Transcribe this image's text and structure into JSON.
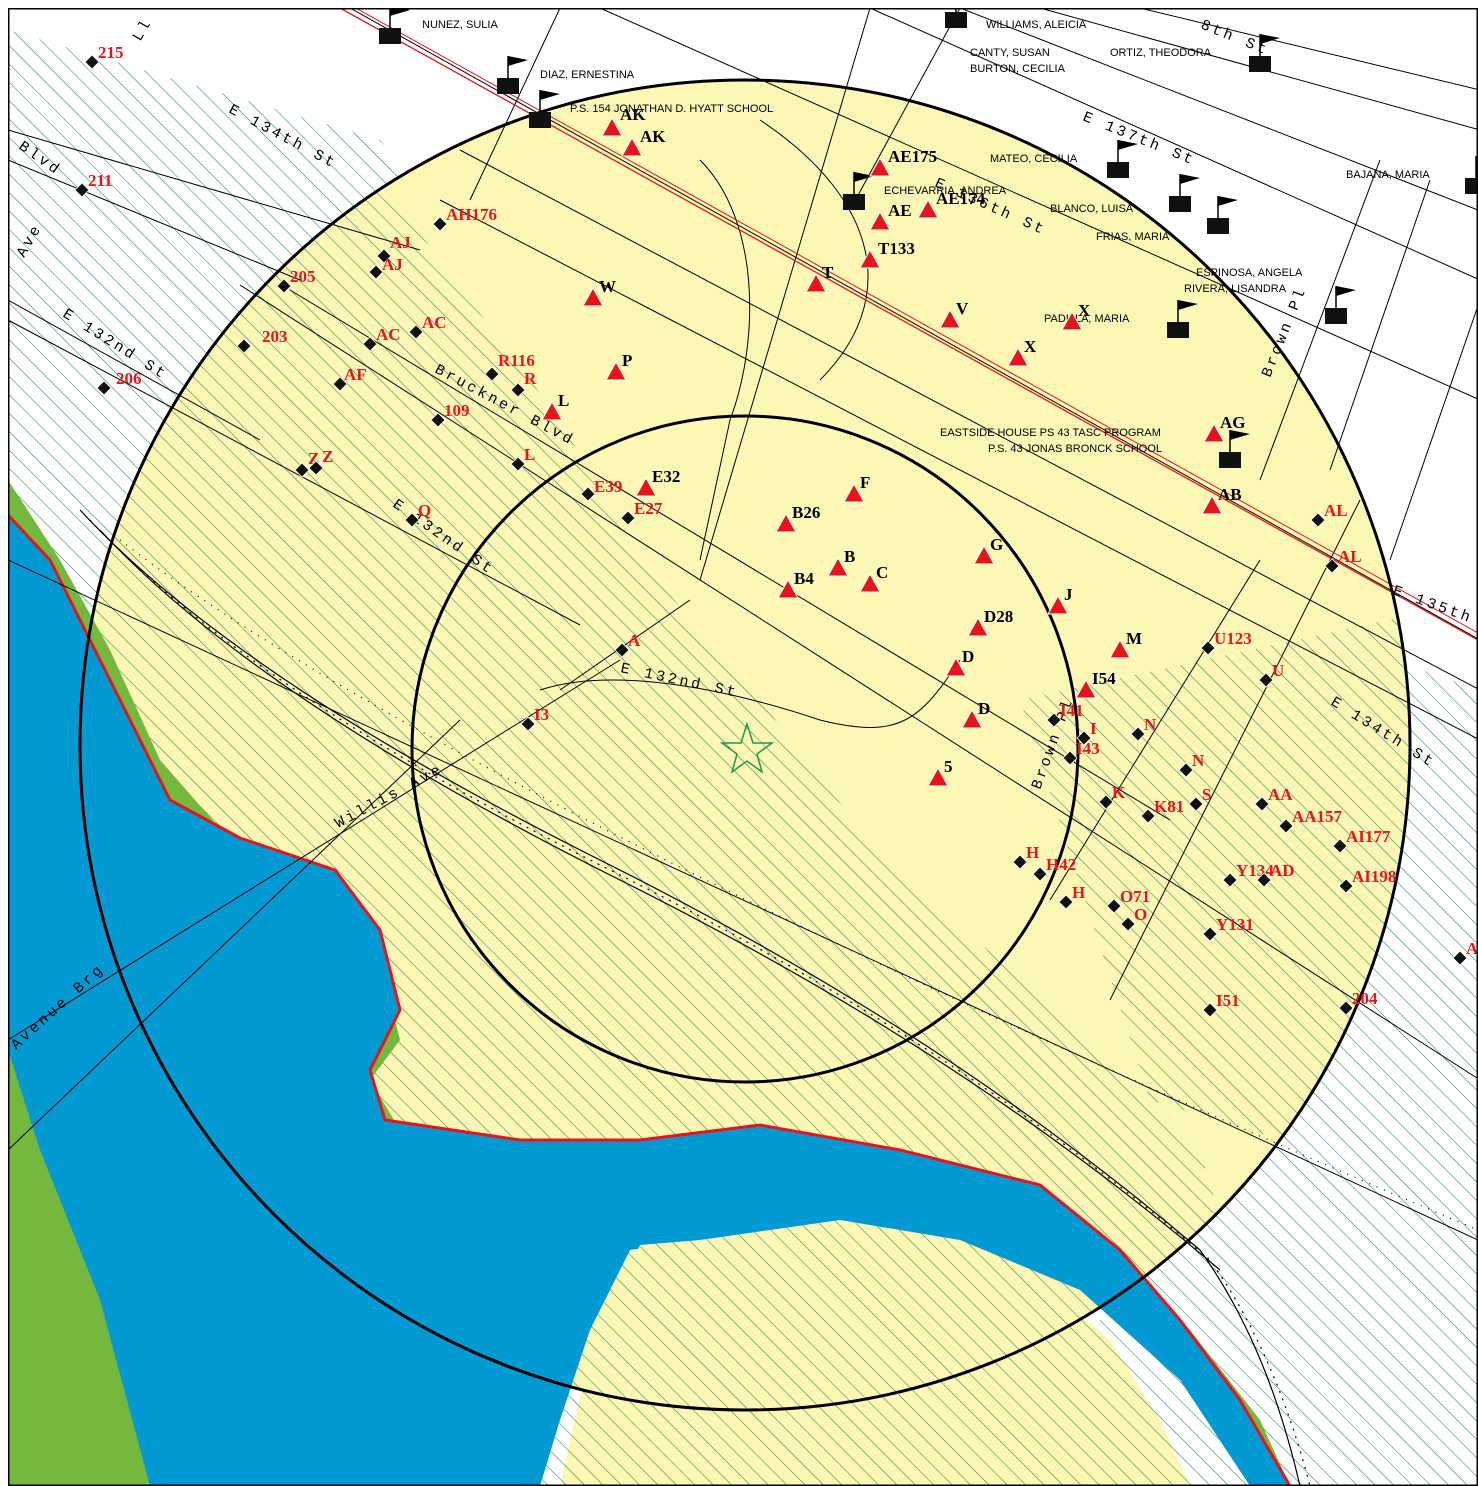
{
  "colors": {
    "background": "#ffffff",
    "zone_fill": "#fdf7b5",
    "hatch": "#1f8a52",
    "water": "#0399d3",
    "wetland": "#74b93e",
    "shoreline": "#e8141c",
    "marker_red": "#e8141c",
    "marker_black": "#111111",
    "center_star": "#1a9a4a"
  },
  "streets": [
    {
      "text": "E 134th St"
    },
    {
      "text": "Blvd"
    },
    {
      "text": "Ave"
    },
    {
      "text": "E 132nd St"
    },
    {
      "text": "Bruckner Blvd"
    },
    {
      "text": "E 132nd St"
    },
    {
      "text": "E 132nd St"
    },
    {
      "text": "Willis Ave"
    },
    {
      "text": "Avenue Brg"
    },
    {
      "text": "E 137th St"
    },
    {
      "text": "E 136th St"
    },
    {
      "text": "8th St"
    },
    {
      "text": "Brown Pl"
    },
    {
      "text": "E 135th"
    },
    {
      "text": "E 134th St"
    },
    {
      "text": "Brown Pl"
    },
    {
      "text": "Ll"
    }
  ],
  "receptors": [
    {
      "text": "NUNEZ, SULIA"
    },
    {
      "text": "WILLIAMS, ALEICIA"
    },
    {
      "text": "CANTY, SUSAN"
    },
    {
      "text": "BURTON, CECILIA"
    },
    {
      "text": "ORTIZ, THEODORA"
    },
    {
      "text": "DIAZ, ERNESTINA"
    },
    {
      "text": "P.S. 154 JONATHAN D. HYATT SCHOOL"
    },
    {
      "text": "MATEO, CECILIA"
    },
    {
      "text": "ECHEVARRIA, ANDREA"
    },
    {
      "text": "BLANCO, LUISA"
    },
    {
      "text": "FRIAS, MARIA"
    },
    {
      "text": "BAJANA, MARIA"
    },
    {
      "text": "ESPINOSA, ANGELA"
    },
    {
      "text": "RIVERA, LISANDRA"
    },
    {
      "text": "PADILLA, MARIA"
    },
    {
      "text": "EASTSIDE HOUSE PS 43 TASC PROGRAM"
    },
    {
      "text": "P.S. 43 JONAS BRONCK SCHOOL"
    }
  ],
  "triangle_sites": [
    {
      "label": "AK",
      "color": "black"
    },
    {
      "label": "AK",
      "color": "black"
    },
    {
      "label": "AE175",
      "color": "black"
    },
    {
      "label": "AE",
      "color": "black"
    },
    {
      "label": "AE174",
      "color": "black"
    },
    {
      "label": "T133",
      "color": "black"
    },
    {
      "label": "T",
      "color": "black"
    },
    {
      "label": "W",
      "color": "black"
    },
    {
      "label": "V",
      "color": "black"
    },
    {
      "label": "X",
      "color": "black"
    },
    {
      "label": "X",
      "color": "black"
    },
    {
      "label": "P",
      "color": "black"
    },
    {
      "label": "L",
      "color": "black"
    },
    {
      "label": "AG",
      "color": "black"
    },
    {
      "label": "AB",
      "color": "black"
    },
    {
      "label": "E32",
      "color": "black"
    },
    {
      "label": "F",
      "color": "black"
    },
    {
      "label": "B26",
      "color": "black"
    },
    {
      "label": "G",
      "color": "black"
    },
    {
      "label": "B",
      "color": "black"
    },
    {
      "label": "C",
      "color": "black"
    },
    {
      "label": "B4",
      "color": "black"
    },
    {
      "label": "J",
      "color": "black"
    },
    {
      "label": "D28",
      "color": "black"
    },
    {
      "label": "M",
      "color": "black"
    },
    {
      "label": "D",
      "color": "black"
    },
    {
      "label": "I54",
      "color": "black"
    },
    {
      "label": "D",
      "color": "black"
    },
    {
      "label": "5",
      "color": "black"
    }
  ],
  "diamond_sites": [
    {
      "label": "215"
    },
    {
      "label": "211"
    },
    {
      "label": "AH176"
    },
    {
      "label": "AJ"
    },
    {
      "label": "AJ"
    },
    {
      "label": "205"
    },
    {
      "label": "AC"
    },
    {
      "label": "AC"
    },
    {
      "label": "203"
    },
    {
      "label": "206"
    },
    {
      "label": "AF"
    },
    {
      "label": "R116"
    },
    {
      "label": "R"
    },
    {
      "label": "109"
    },
    {
      "label": "Z"
    },
    {
      "label": "Z"
    },
    {
      "label": "L"
    },
    {
      "label": "E39"
    },
    {
      "label": "E27"
    },
    {
      "label": "Q"
    },
    {
      "label": "A"
    },
    {
      "label": "I3"
    },
    {
      "label": "AL"
    },
    {
      "label": "AL"
    },
    {
      "label": "U123"
    },
    {
      "label": "U"
    },
    {
      "label": "I41"
    },
    {
      "label": "I"
    },
    {
      "label": "I43"
    },
    {
      "label": "N"
    },
    {
      "label": "N"
    },
    {
      "label": "K"
    },
    {
      "label": "K81"
    },
    {
      "label": "S"
    },
    {
      "label": "AA"
    },
    {
      "label": "AA157"
    },
    {
      "label": "AI177"
    },
    {
      "label": "H"
    },
    {
      "label": "H42"
    },
    {
      "label": "H"
    },
    {
      "label": "O71"
    },
    {
      "label": "O"
    },
    {
      "label": "Y134"
    },
    {
      "label": "AD"
    },
    {
      "label": "AI198"
    },
    {
      "label": "Y131"
    },
    {
      "label": "I51"
    },
    {
      "label": "204"
    },
    {
      "label": "A"
    }
  ]
}
